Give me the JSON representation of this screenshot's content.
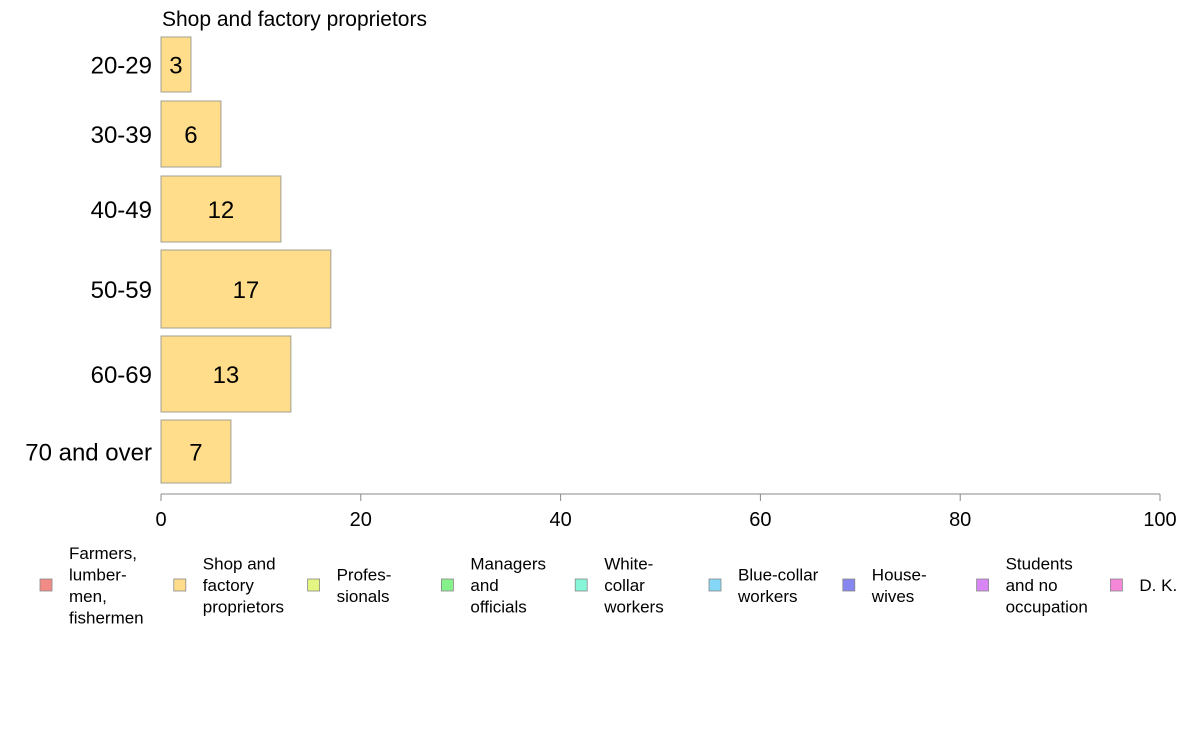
{
  "chart_data": {
    "type": "bar",
    "orientation": "horizontal",
    "title": "Shop and factory proprietors",
    "categories": [
      "20-29",
      "30-39",
      "40-49",
      "50-59",
      "60-69",
      "70 and over"
    ],
    "series": [
      {
        "name": "Shop and factory proprietors",
        "values": [
          3,
          6,
          12,
          17,
          13,
          7
        ]
      }
    ],
    "xlim": [
      0,
      100
    ],
    "xticks": [
      0,
      20,
      40,
      60,
      80,
      100
    ],
    "grid": false,
    "legend_position": "bottom",
    "legend": [
      {
        "lines": [
          "Farmers,",
          "lumber-",
          "men,",
          "fishermen"
        ],
        "color": "#f28b86"
      },
      {
        "lines": [
          "Shop and",
          "factory",
          "proprietors"
        ],
        "color": "#ffdd8a"
      },
      {
        "lines": [
          "Profes-",
          "sionals"
        ],
        "color": "#e4f582"
      },
      {
        "lines": [
          "Managers",
          "and",
          "officials"
        ],
        "color": "#86f08b"
      },
      {
        "lines": [
          "White-",
          "collar",
          "workers"
        ],
        "color": "#86f5d8"
      },
      {
        "lines": [
          "Blue-collar",
          "workers"
        ],
        "color": "#86d7f5"
      },
      {
        "lines": [
          "House-",
          "wives"
        ],
        "color": "#8686f0"
      },
      {
        "lines": [
          "Students",
          "and no",
          "occupation"
        ],
        "color": "#d886f5"
      },
      {
        "lines": [
          "D. K."
        ],
        "color": "#f586d8"
      }
    ]
  }
}
